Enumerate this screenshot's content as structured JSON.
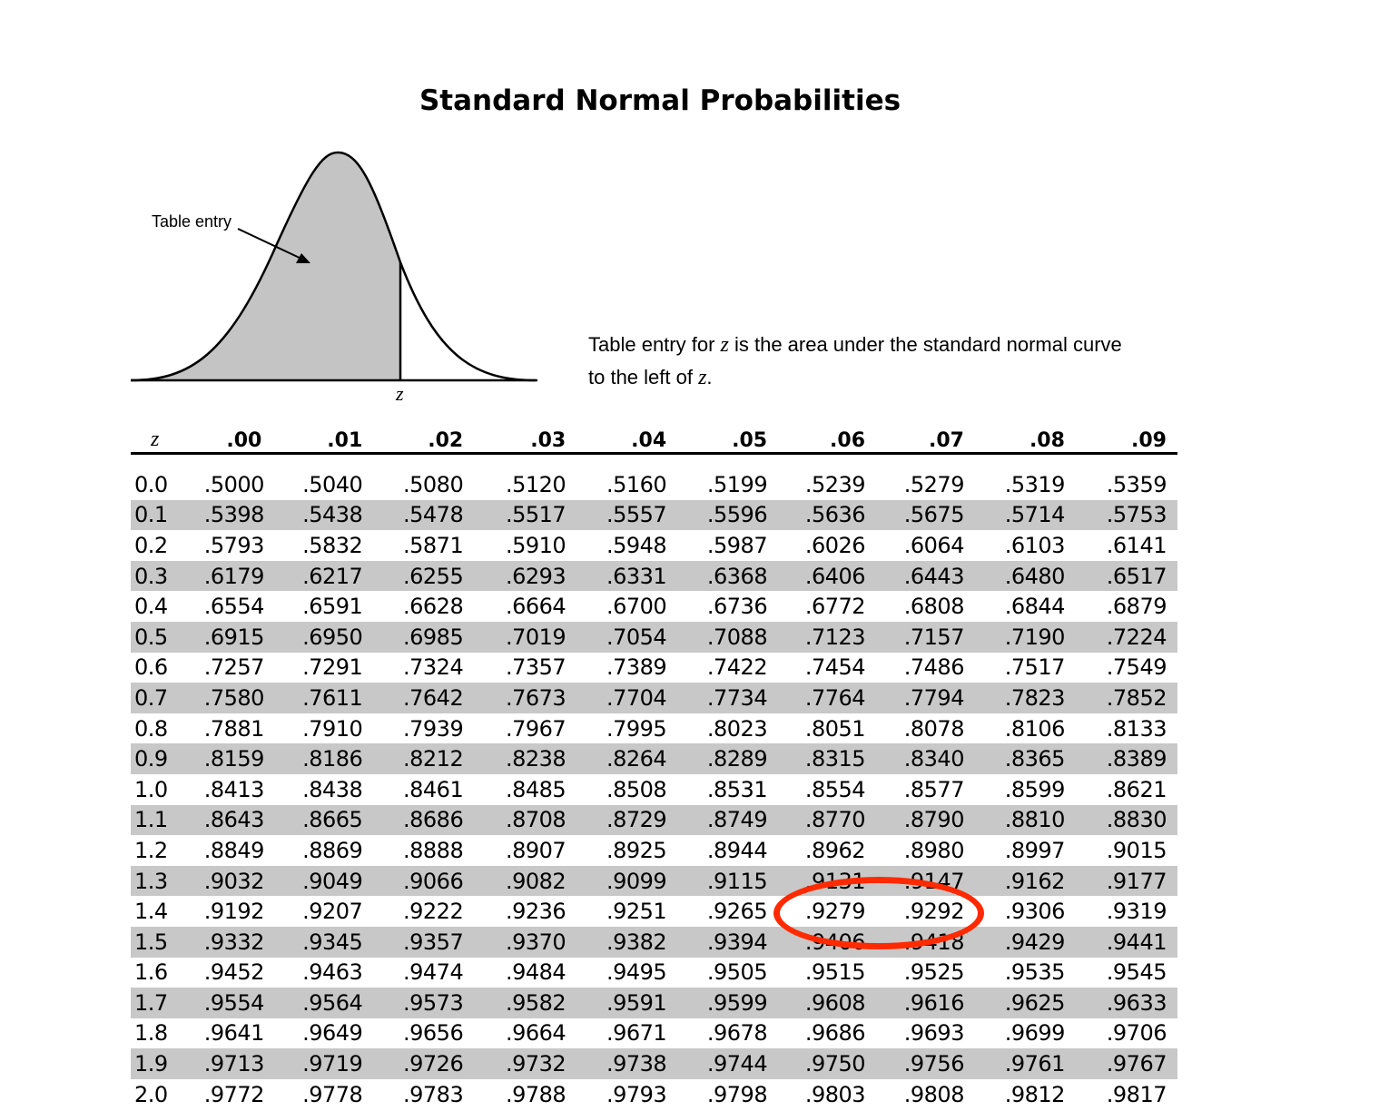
{
  "title": "Standard Normal Probabilities",
  "figure": {
    "callout_label": "Table entry",
    "z_label": "z",
    "curve_fill_color": "#c4c4c4"
  },
  "caption": {
    "line1_prefix": "Table entry for ",
    "line1_var": "z",
    "line1_suffix": " is the area under the standard normal curve",
    "line2_prefix": "to the left of ",
    "line2_var": "z",
    "line2_suffix": "."
  },
  "table": {
    "header": [
      "z",
      ".00",
      ".01",
      ".02",
      ".03",
      ".04",
      ".05",
      ".06",
      ".07",
      ".08",
      ".09"
    ],
    "rows": [
      [
        "0.0",
        ".5000",
        ".5040",
        ".5080",
        ".5120",
        ".5160",
        ".5199",
        ".5239",
        ".5279",
        ".5319",
        ".5359"
      ],
      [
        "0.1",
        ".5398",
        ".5438",
        ".5478",
        ".5517",
        ".5557",
        ".5596",
        ".5636",
        ".5675",
        ".5714",
        ".5753"
      ],
      [
        "0.2",
        ".5793",
        ".5832",
        ".5871",
        ".5910",
        ".5948",
        ".5987",
        ".6026",
        ".6064",
        ".6103",
        ".6141"
      ],
      [
        "0.3",
        ".6179",
        ".6217",
        ".6255",
        ".6293",
        ".6331",
        ".6368",
        ".6406",
        ".6443",
        ".6480",
        ".6517"
      ],
      [
        "0.4",
        ".6554",
        ".6591",
        ".6628",
        ".6664",
        ".6700",
        ".6736",
        ".6772",
        ".6808",
        ".6844",
        ".6879"
      ],
      [
        "0.5",
        ".6915",
        ".6950",
        ".6985",
        ".7019",
        ".7054",
        ".7088",
        ".7123",
        ".7157",
        ".7190",
        ".7224"
      ],
      [
        "0.6",
        ".7257",
        ".7291",
        ".7324",
        ".7357",
        ".7389",
        ".7422",
        ".7454",
        ".7486",
        ".7517",
        ".7549"
      ],
      [
        "0.7",
        ".7580",
        ".7611",
        ".7642",
        ".7673",
        ".7704",
        ".7734",
        ".7764",
        ".7794",
        ".7823",
        ".7852"
      ],
      [
        "0.8",
        ".7881",
        ".7910",
        ".7939",
        ".7967",
        ".7995",
        ".8023",
        ".8051",
        ".8078",
        ".8106",
        ".8133"
      ],
      [
        "0.9",
        ".8159",
        ".8186",
        ".8212",
        ".8238",
        ".8264",
        ".8289",
        ".8315",
        ".8340",
        ".8365",
        ".8389"
      ],
      [
        "1.0",
        ".8413",
        ".8438",
        ".8461",
        ".8485",
        ".8508",
        ".8531",
        ".8554",
        ".8577",
        ".8599",
        ".8621"
      ],
      [
        "1.1",
        ".8643",
        ".8665",
        ".8686",
        ".8708",
        ".8729",
        ".8749",
        ".8770",
        ".8790",
        ".8810",
        ".8830"
      ],
      [
        "1.2",
        ".8849",
        ".8869",
        ".8888",
        ".8907",
        ".8925",
        ".8944",
        ".8962",
        ".8980",
        ".8997",
        ".9015"
      ],
      [
        "1.3",
        ".9032",
        ".9049",
        ".9066",
        ".9082",
        ".9099",
        ".9115",
        ".9131",
        ".9147",
        ".9162",
        ".9177"
      ],
      [
        "1.4",
        ".9192",
        ".9207",
        ".9222",
        ".9236",
        ".9251",
        ".9265",
        ".9279",
        ".9292",
        ".9306",
        ".9319"
      ],
      [
        "1.5",
        ".9332",
        ".9345",
        ".9357",
        ".9370",
        ".9382",
        ".9394",
        ".9406",
        ".9418",
        ".9429",
        ".9441"
      ],
      [
        "1.6",
        ".9452",
        ".9463",
        ".9474",
        ".9484",
        ".9495",
        ".9505",
        ".9515",
        ".9525",
        ".9535",
        ".9545"
      ],
      [
        "1.7",
        ".9554",
        ".9564",
        ".9573",
        ".9582",
        ".9591",
        ".9599",
        ".9608",
        ".9616",
        ".9625",
        ".9633"
      ],
      [
        "1.8",
        ".9641",
        ".9649",
        ".9656",
        ".9664",
        ".9671",
        ".9678",
        ".9686",
        ".9693",
        ".9699",
        ".9706"
      ],
      [
        "1.9",
        ".9713",
        ".9719",
        ".9726",
        ".9732",
        ".9738",
        ".9744",
        ".9750",
        ".9756",
        ".9761",
        ".9767"
      ],
      [
        "2.0",
        ".9772",
        ".9778",
        ".9783",
        ".9788",
        ".9793",
        ".9798",
        ".9803",
        ".9808",
        ".9812",
        ".9817"
      ]
    ],
    "shade_color": "#c8c8c8"
  },
  "highlight": {
    "color": "#ff2a00",
    "circled_values": [
      ".9279",
      ".9292"
    ],
    "row": "1.4",
    "columns": [
      ".06",
      ".07"
    ]
  }
}
